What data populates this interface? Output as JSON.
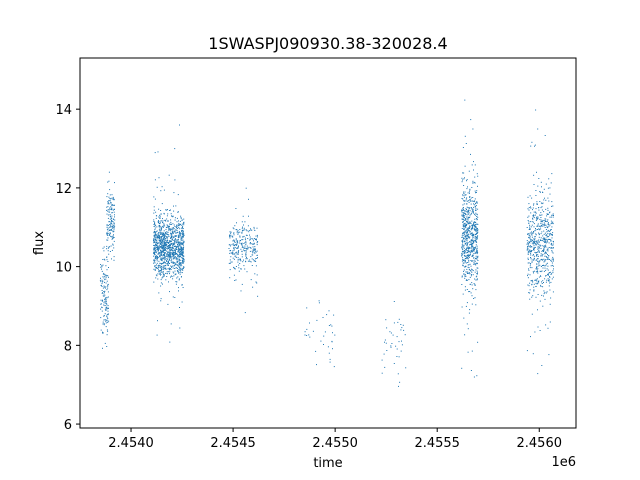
{
  "chart_data": {
    "type": "scatter",
    "title": "1SWASPJ090930.38-320028.4",
    "xlabel": "time",
    "ylabel": "flux",
    "x_offset_label": "1e6",
    "xlim": [
      2.45375,
      2.45618
    ],
    "ylim": [
      5.9,
      15.3
    ],
    "x_ticks": [
      2.454,
      2.4545,
      2.455,
      2.4555,
      2.456
    ],
    "x_tick_labels": [
      "2.4540",
      "2.4545",
      "2.4550",
      "2.4555",
      "2.4560"
    ],
    "y_ticks": [
      6,
      8,
      10,
      12,
      14
    ],
    "y_tick_labels": [
      "6",
      "8",
      "10",
      "12",
      "14"
    ],
    "grid": false,
    "marker_color": "#1f77b4",
    "clusters": [
      {
        "x_range": [
          2.45385,
          2.45389
        ],
        "y_center": 9.2,
        "y_spread": 1.1,
        "n": 140
      },
      {
        "x_range": [
          2.45388,
          2.45392
        ],
        "y_center": 11.2,
        "y_spread": 0.9,
        "n": 160
      },
      {
        "x_range": [
          2.45411,
          2.45426
        ],
        "y_center": 10.5,
        "y_spread": 0.75,
        "n": 1100
      },
      {
        "x_range": [
          2.45411,
          2.45426
        ],
        "y_center": 10.5,
        "y_spread": 2.5,
        "n": 90
      },
      {
        "x_range": [
          2.45448,
          2.45462
        ],
        "y_center": 10.5,
        "y_spread": 0.55,
        "n": 260
      },
      {
        "x_range": [
          2.45448,
          2.45462
        ],
        "y_center": 10.2,
        "y_spread": 1.8,
        "n": 30
      },
      {
        "x_range": [
          2.45485,
          2.455
        ],
        "y_center": 8.3,
        "y_spread": 1.0,
        "n": 35
      },
      {
        "x_range": [
          2.45523,
          2.45535
        ],
        "y_center": 8.1,
        "y_spread": 0.9,
        "n": 40
      },
      {
        "x_range": [
          2.45562,
          2.4557
        ],
        "y_center": 10.8,
        "y_spread": 1.3,
        "n": 600
      },
      {
        "x_range": [
          2.45562,
          2.4557
        ],
        "y_center": 10.5,
        "y_spread": 3.0,
        "n": 90
      },
      {
        "x_range": [
          2.45594,
          2.45607
        ],
        "y_center": 10.6,
        "y_spread": 1.2,
        "n": 550
      },
      {
        "x_range": [
          2.45594,
          2.45607
        ],
        "y_center": 10.5,
        "y_spread": 3.0,
        "n": 80
      }
    ]
  }
}
